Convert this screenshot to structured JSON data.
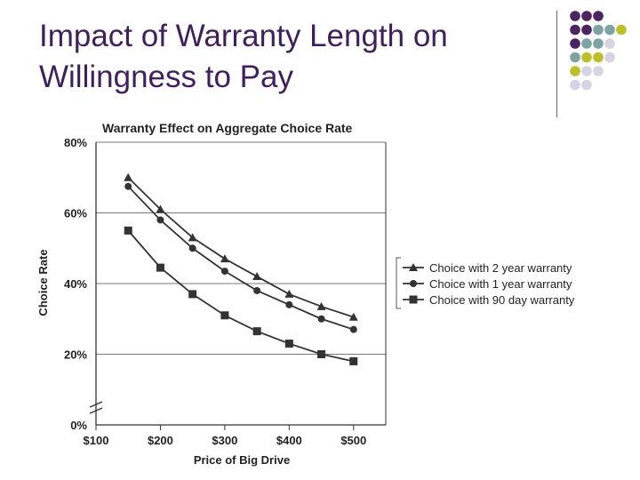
{
  "slide": {
    "title": "Impact of Warranty Length on Willingness to Pay"
  },
  "colors": {
    "title": "#3f1f5c",
    "dot_purple": "#4b2461",
    "dot_teal": "#7ea3a5",
    "dot_yellow": "#bdbf2a",
    "dot_lilac": "#d6d4e3",
    "series_line": "#333333"
  },
  "decoration": {
    "dot_grid_rows": [
      [
        "purple",
        "purple",
        "purple",
        "",
        ""
      ],
      [
        "purple",
        "purple",
        "teal",
        "teal",
        "yellow"
      ],
      [
        "purple",
        "teal",
        "teal",
        "lilac",
        ""
      ],
      [
        "teal",
        "yellow",
        "yellow",
        "lilac",
        ""
      ],
      [
        "yellow",
        "lilac",
        "lilac",
        "",
        ""
      ],
      [
        "lilac",
        "lilac",
        "",
        "",
        ""
      ]
    ]
  },
  "chart_data": {
    "type": "line",
    "title": "Warranty Effect on Aggregate Choice Rate",
    "xlabel": "Price of Big Drive",
    "ylabel": "Choice Rate",
    "x_ticks": [
      "$100",
      "$200",
      "$300",
      "$400",
      "$500"
    ],
    "y_ticks": [
      "0%",
      "20%",
      "40%",
      "60%",
      "80%"
    ],
    "xlim": [
      100,
      550
    ],
    "ylim": [
      0,
      80
    ],
    "y_axis_break": true,
    "grid": "horizontal",
    "legend_position": "right",
    "x": [
      150,
      200,
      250,
      300,
      350,
      400,
      450,
      500
    ],
    "series": [
      {
        "name": "Choice with 2 year warranty",
        "marker": "triangle",
        "values": [
          70,
          61,
          53,
          47,
          42,
          37,
          33.5,
          30.5
        ]
      },
      {
        "name": "Choice with 1 year warranty",
        "marker": "circle",
        "values": [
          67.5,
          58,
          50,
          43.5,
          38,
          34,
          30,
          27
        ]
      },
      {
        "name": "Choice with 90 day warranty",
        "marker": "square",
        "values": [
          55,
          44.5,
          37,
          31,
          26.5,
          23,
          20,
          18
        ]
      }
    ]
  }
}
